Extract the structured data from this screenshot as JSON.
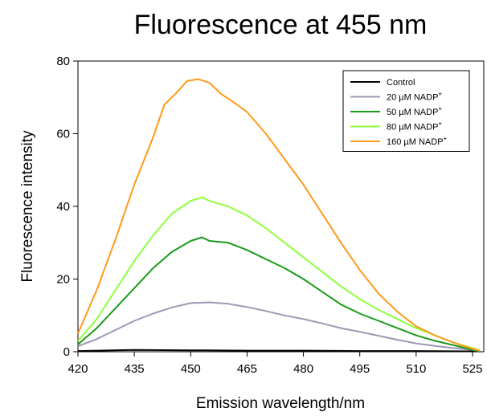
{
  "chart_data": {
    "type": "line",
    "title": "Fluorescence at 455 nm",
    "xlabel": "Emission wavelength/nm",
    "ylabel": "Fluorescence intensity",
    "xlim": [
      420,
      528
    ],
    "ylim": [
      0,
      80
    ],
    "xticks": [
      420,
      435,
      450,
      465,
      480,
      495,
      510,
      525
    ],
    "yticks": [
      0,
      20,
      40,
      60,
      80
    ],
    "grid": false,
    "legend_position": "top-right",
    "series": [
      {
        "name": "Control",
        "color": "#000000",
        "x": [
          420,
          435,
          450,
          465,
          480,
          495,
          510,
          525,
          527
        ],
        "y": [
          0.2,
          0.5,
          0.4,
          0.3,
          0.3,
          0.2,
          0.2,
          0.1,
          0.1
        ]
      },
      {
        "name": "20 µM NADP+",
        "name_main": "20 µM NADP",
        "name_sup": "+",
        "color": "#9a9ab4",
        "x": [
          420,
          425,
          430,
          435,
          440,
          445,
          450,
          455,
          460,
          465,
          470,
          475,
          480,
          485,
          490,
          495,
          500,
          505,
          510,
          515,
          520,
          525,
          527
        ],
        "y": [
          1.5,
          3.5,
          6,
          8.5,
          10.5,
          12.2,
          13.4,
          13.6,
          13.2,
          12.3,
          11.2,
          10,
          9,
          7.8,
          6.5,
          5.5,
          4.4,
          3.3,
          2.3,
          1.6,
          1.0,
          0.5,
          0.2
        ]
      },
      {
        "name": "50 µM NADP+",
        "name_main": "50 µM NADP",
        "name_sup": "+",
        "color": "#1a9a1a",
        "x": [
          420,
          425,
          430,
          435,
          440,
          445,
          450,
          453,
          455,
          460,
          465,
          470,
          475,
          480,
          485,
          490,
          495,
          500,
          505,
          510,
          515,
          520,
          525,
          527
        ],
        "y": [
          2,
          6.5,
          12,
          17.5,
          23,
          27.5,
          30.5,
          31.5,
          30.5,
          30,
          28,
          25.5,
          23,
          20,
          16.5,
          13,
          10.5,
          8.5,
          6.5,
          4.5,
          3,
          1.8,
          0.5,
          0.2
        ]
      },
      {
        "name": "80 µM NADP+",
        "name_main": "80 µM NADP",
        "name_sup": "+",
        "color": "#8fff3c",
        "x": [
          420,
          425,
          430,
          435,
          440,
          445,
          450,
          453,
          455,
          460,
          465,
          470,
          475,
          480,
          485,
          490,
          495,
          500,
          505,
          510,
          515,
          520,
          525,
          527
        ],
        "y": [
          3,
          9,
          17,
          25,
          32,
          38,
          41.5,
          42.5,
          41.5,
          40,
          37.5,
          34,
          30,
          26,
          22,
          18,
          14.5,
          11.5,
          9,
          6.5,
          4.5,
          2.5,
          1.0,
          0.3
        ]
      },
      {
        "name": "160 µM NADP+",
        "name_main": "160 µM NADP",
        "name_sup": "+",
        "color": "#ff9a1a",
        "x": [
          420,
          425,
          430,
          435,
          440,
          443,
          446,
          449,
          452,
          455,
          458,
          461,
          465,
          470,
          475,
          480,
          485,
          490,
          495,
          500,
          505,
          510,
          515,
          520,
          525,
          527
        ],
        "y": [
          5,
          17,
          31,
          46,
          59,
          68,
          71,
          74.5,
          75,
          74,
          71,
          69,
          66,
          60,
          53,
          46,
          38,
          30,
          22.5,
          16,
          11,
          7,
          4.5,
          2.5,
          0.8,
          0.3
        ]
      }
    ]
  }
}
